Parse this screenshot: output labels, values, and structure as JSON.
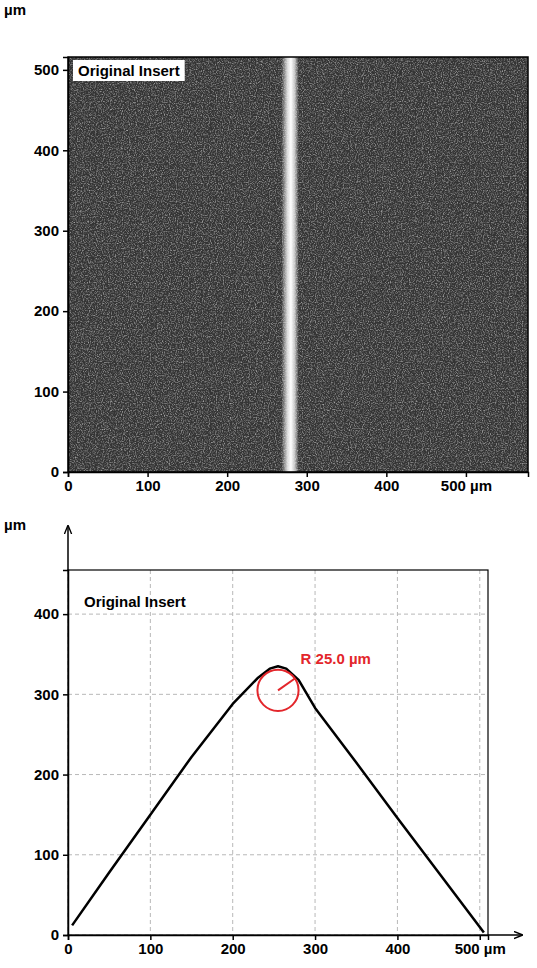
{
  "chart_data": [
    {
      "type": "image",
      "title": "Original Insert",
      "ylabel": "µm",
      "band": [
        268,
        290
      ],
      "xlim": [
        0,
        578
      ],
      "ylim": [
        0,
        516
      ],
      "xticks": [
        0,
        100,
        200,
        300,
        400,
        {
          "value": 500,
          "label": "500 µm"
        }
      ],
      "yticks": [
        0,
        100,
        200,
        300,
        400,
        500
      ]
    },
    {
      "type": "line",
      "title": "Original Insert",
      "ylabel": "µm",
      "x": [
        5,
        50,
        100,
        150,
        200,
        230,
        245,
        255,
        265,
        280,
        300,
        350,
        400,
        450,
        505
      ],
      "values": [
        12,
        78,
        150,
        222,
        288,
        320,
        332,
        335,
        332,
        318,
        283,
        215,
        146,
        78,
        3
      ],
      "color": "#000000",
      "xlim": [
        0,
        510
      ],
      "ylim": [
        0,
        455
      ],
      "xticks": [
        0,
        100,
        200,
        300,
        400,
        {
          "value": 500,
          "label": "500 µm"
        }
      ],
      "yticks": [
        0,
        100,
        200,
        300,
        400
      ],
      "grid": true,
      "annotation": {
        "text": "R 25.0 µm",
        "x": 255,
        "y": 305,
        "radius": 25,
        "color": "#e3262b"
      }
    }
  ]
}
